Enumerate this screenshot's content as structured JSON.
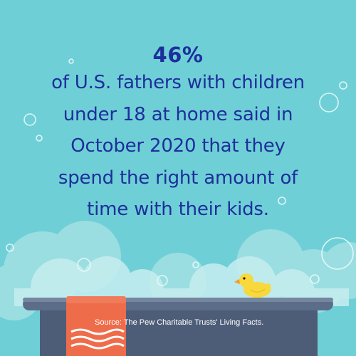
{
  "stat": "46%",
  "body_lines": [
    "of U.S. fathers with children",
    "under 18 at home said in",
    "October 2020 that they",
    "spend the right amount of",
    "time with their kids."
  ],
  "source": "Source: The Pew Charitable Trusts' Living Facts.",
  "colors": {
    "background": "#6fcfd6",
    "text": "#1d2f9c",
    "towel": "#ef6c4a",
    "tub": "#4d5d78",
    "duck": "#f8d83a"
  }
}
